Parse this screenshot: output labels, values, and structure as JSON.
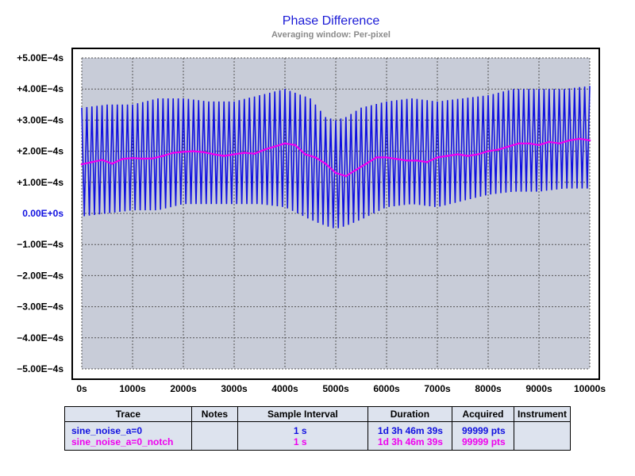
{
  "chart_data": {
    "type": "line",
    "title": "Phase Difference",
    "subtitle": "Averaging window: Per-pixel",
    "xlabel": "",
    "ylabel": "",
    "xlim": [
      0,
      10000
    ],
    "ylim": [
      -0.0005,
      0.0005
    ],
    "grid": true,
    "x_ticks": [
      "0s",
      "1000s",
      "2000s",
      "3000s",
      "4000s",
      "5000s",
      "6000s",
      "7000s",
      "8000s",
      "9000s",
      "10000s"
    ],
    "y_ticks": [
      "+5.00E−4s",
      "+4.00E−4s",
      "+3.00E−4s",
      "+2.00E−4s",
      "+1.00E−4s",
      "0.00E+0s",
      "−1.00E−4s",
      "−2.00E−4s",
      "−3.00E−4s",
      "−4.00E−4s",
      "−5.00E−4s"
    ],
    "series": [
      {
        "name": "sine_noise_a=0",
        "color": "#1010e0",
        "oscillation_period_s": 100,
        "x": [
          0,
          500,
          1000,
          1500,
          2000,
          2500,
          3000,
          3500,
          4000,
          4500,
          4800,
          5000,
          5200,
          5500,
          6000,
          6500,
          7000,
          7500,
          8000,
          8500,
          9000,
          9500,
          10000
        ],
        "upper_envelope": [
          0.00034,
          0.00035,
          0.00035,
          0.00037,
          0.00037,
          0.00036,
          0.00036,
          0.00038,
          0.0004,
          0.00037,
          0.00031,
          0.0003,
          0.00031,
          0.00034,
          0.00036,
          0.00037,
          0.00036,
          0.00037,
          0.00038,
          0.0004,
          0.0004,
          0.0004,
          0.00041
        ],
        "lower_envelope": [
          -1e-05,
          0.0,
          1e-05,
          1e-05,
          3e-05,
          3e-05,
          3e-05,
          3e-05,
          2e-05,
          -2e-05,
          -4e-05,
          -5e-05,
          -4e-05,
          -2e-05,
          2e-05,
          3e-05,
          2e-05,
          4e-05,
          6e-05,
          7e-05,
          7e-05,
          8e-05,
          8e-05
        ]
      },
      {
        "name": "sine_noise_a=0_notch",
        "color": "#ee00ee",
        "x": [
          0,
          200,
          400,
          600,
          800,
          1000,
          1200,
          1400,
          1600,
          1800,
          2000,
          2200,
          2400,
          2600,
          2800,
          3000,
          3200,
          3400,
          3600,
          3800,
          4000,
          4200,
          4400,
          4600,
          4800,
          5000,
          5200,
          5400,
          5600,
          5800,
          6000,
          6200,
          6400,
          6600,
          6800,
          7000,
          7200,
          7400,
          7600,
          7800,
          8000,
          8200,
          8400,
          8600,
          8800,
          9000,
          9200,
          9400,
          9600,
          9800,
          10000
        ],
        "y": [
          0.000158,
          0.000165,
          0.000172,
          0.00016,
          0.000175,
          0.000178,
          0.000176,
          0.000177,
          0.000185,
          0.000195,
          0.000198,
          0.0002,
          0.000197,
          0.00019,
          0.000185,
          0.00019,
          0.000195,
          0.000192,
          0.000205,
          0.000215,
          0.000225,
          0.00022,
          0.00019,
          0.00018,
          0.00016,
          0.00013,
          0.00012,
          0.00014,
          0.00016,
          0.00018,
          0.00018,
          0.000175,
          0.00017,
          0.00017,
          0.000165,
          0.00018,
          0.000185,
          0.00019,
          0.000185,
          0.00019,
          0.0002,
          0.000205,
          0.000215,
          0.000225,
          0.000225,
          0.00022,
          0.00023,
          0.000225,
          0.000235,
          0.00024,
          0.000235
        ]
      }
    ]
  },
  "legend_table": {
    "headers": [
      "Trace",
      "Notes",
      "Sample Interval",
      "Duration",
      "Acquired",
      "Instrument"
    ],
    "rows": [
      {
        "trace": "sine_noise_a=0",
        "notes": "",
        "sample_interval": "1 s",
        "duration": "1d 3h 46m 39s",
        "acquired": "99999 pts",
        "instrument": "",
        "color": "#1010e0"
      },
      {
        "trace": "sine_noise_a=0_notch",
        "notes": "",
        "sample_interval": "1 s",
        "duration": "1d 3h 46m 39s",
        "acquired": "99999 pts",
        "instrument": "",
        "color": "#ee00ee"
      }
    ]
  }
}
